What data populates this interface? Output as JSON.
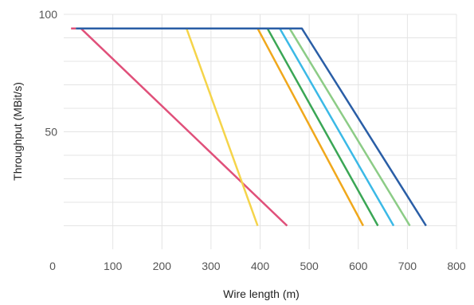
{
  "chart_data": {
    "type": "line",
    "xlabel": "Wire length (m)",
    "ylabel": "Throughput (MBit/s)",
    "xlim": [
      0,
      800
    ],
    "ylim": [
      0,
      100
    ],
    "x_ticks": [
      0,
      100,
      200,
      300,
      400,
      500,
      600,
      700,
      800
    ],
    "y_ticks": [
      50,
      100
    ],
    "grid": true,
    "series": [
      {
        "color": "#e0507a",
        "points": [
          [
            15,
            94
          ],
          [
            35,
            94
          ],
          [
            455,
            10
          ]
        ]
      },
      {
        "color": "#f5d44a",
        "points": [
          [
            25,
            94
          ],
          [
            250,
            94
          ],
          [
            395,
            10
          ]
        ]
      },
      {
        "color": "#f0a81c",
        "points": [
          [
            25,
            94
          ],
          [
            395,
            94
          ],
          [
            610,
            10
          ]
        ]
      },
      {
        "color": "#3aa655",
        "points": [
          [
            25,
            94
          ],
          [
            415,
            94
          ],
          [
            640,
            10
          ]
        ]
      },
      {
        "color": "#3bb9e6",
        "points": [
          [
            25,
            94
          ],
          [
            440,
            94
          ],
          [
            672,
            10
          ]
        ]
      },
      {
        "color": "#8ccc86",
        "points": [
          [
            25,
            94
          ],
          [
            460,
            94
          ],
          [
            705,
            10
          ]
        ]
      },
      {
        "color": "#2a5ea6",
        "points": [
          [
            25,
            94
          ],
          [
            485,
            94
          ],
          [
            738,
            10
          ]
        ]
      }
    ]
  }
}
